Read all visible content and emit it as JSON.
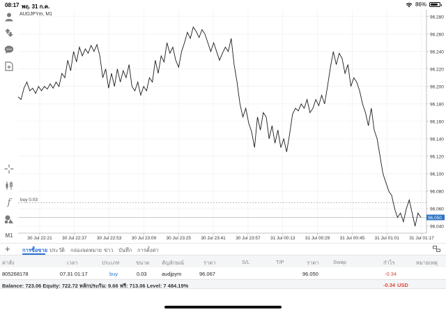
{
  "status_bar": {
    "time": "08:17",
    "date": "พฤ. 31 ก.ค.",
    "battery": "86%",
    "battery_level": 0.86,
    "icons": [
      "wifi-icon",
      "battery-icon"
    ]
  },
  "toolbar": {
    "icons": [
      "account-icon",
      "trade-icon",
      "chat-icon",
      "new-order-icon",
      "crosshair-icon",
      "chart-type-icon",
      "indicator-icon",
      "objects-icon",
      "timeframe-icon"
    ],
    "timeframe_label": "M1"
  },
  "chart": {
    "symbol_label": "AUDJPYm, M1",
    "buy_label": "buy 0.03",
    "current_price_label": "96.050",
    "colors": {
      "line": "#1a1a1a",
      "grid": "#ececec",
      "axis": "#b0b0b0",
      "price_tag_bg": "#2c73c4",
      "buy_line": "#a0a0a0"
    }
  },
  "chart_data": {
    "type": "line",
    "title": "AUDJPYm, M1",
    "x_ticks": [
      "30 Jul 22:21",
      "30 Jul 22:37",
      "30 Jul 22:53",
      "30 Jul 23:09",
      "30 Jul 23:25",
      "30 Jul 23:41",
      "30 Jul 23:57",
      "31 Jul 00:13",
      "31 Jul 00:29",
      "31 Jul 00:45",
      "31 Jul 01:01",
      "31 Jul 01:17"
    ],
    "y_ticks": [
      "96.280",
      "96.260",
      "96.240",
      "96.220",
      "96.200",
      "96.180",
      "96.160",
      "96.140",
      "96.120",
      "96.100",
      "96.080",
      "96.060",
      "96.040"
    ],
    "ylim": [
      96.032,
      96.287
    ],
    "buy_level": 96.067,
    "current_price": 96.05,
    "series": [
      {
        "values": [
          96.188,
          96.185,
          96.198,
          96.205,
          96.195,
          96.198,
          96.192,
          96.2,
          96.195,
          96.2,
          96.197,
          96.203,
          96.198,
          96.205,
          96.2,
          96.215,
          96.21,
          96.23,
          96.218,
          96.24,
          96.228,
          96.245,
          96.235,
          96.243,
          96.238,
          96.247,
          96.24,
          96.248,
          96.235,
          96.21,
          96.22,
          96.198,
          96.215,
          96.2,
          96.22,
          96.205,
          96.218,
          96.21,
          96.225,
          96.2,
          96.195,
          96.205,
          96.19,
          96.2,
          96.195,
          96.21,
          96.205,
          96.23,
          96.215,
          96.235,
          96.228,
          96.25,
          96.238,
          96.245,
          96.23,
          96.222,
          96.24,
          96.25,
          96.262,
          96.255,
          96.268,
          96.263,
          96.256,
          96.265,
          96.26,
          96.25,
          96.24,
          96.25,
          96.24,
          96.23,
          96.238,
          96.245,
          96.24,
          96.255,
          96.225,
          96.205,
          96.18,
          96.165,
          96.175,
          96.158,
          96.148,
          96.13,
          96.165,
          96.15,
          96.17,
          96.165,
          96.14,
          96.155,
          96.135,
          96.15,
          96.13,
          96.14,
          96.125,
          96.145,
          96.168,
          96.175,
          96.172,
          96.18,
          96.175,
          96.185,
          96.17,
          96.175,
          96.185,
          96.178,
          96.19,
          96.18,
          96.2,
          96.222,
          96.24,
          96.225,
          96.238,
          96.232,
          96.215,
          96.225,
          96.2,
          96.21,
          96.205,
          96.195,
          96.18,
          96.17,
          96.155,
          96.175,
          96.15,
          96.14,
          96.12,
          96.1,
          96.09,
          96.08,
          96.075,
          96.06,
          96.05,
          96.055,
          96.045,
          96.06,
          96.07,
          96.055,
          96.04,
          96.055,
          96.05
        ]
      }
    ],
    "grid": true
  },
  "tabs": {
    "items": [
      "การซื้อขาย",
      "ประวัติ",
      "กล่องจดหมาย",
      "ข่าว",
      "บันทึก",
      "การตั้งค่า"
    ],
    "active_index": 0
  },
  "table": {
    "headers": [
      "ค่าสั่ง",
      "เวลา",
      "ประเภท",
      "ขนาด",
      "สัญลักษณ์",
      "ราคา",
      "S/L",
      "T/P",
      "ราคา",
      "Swap",
      "กำไร",
      "หมายเหตุ"
    ],
    "row": {
      "order": "805268178",
      "time": "07.31 01:17",
      "type": "buy",
      "size": "0.03",
      "symbol": "audjpym",
      "open_price": "96.067",
      "current_price": "96.050",
      "profit": "-0.34"
    },
    "summary": {
      "text": "Balance: 723.06 Equity: 722.72 หลักประกัน: 9.66 ฟรี: 713.06 Level: 7 484.19%",
      "profit": "-0.34",
      "currency": "USD"
    }
  }
}
